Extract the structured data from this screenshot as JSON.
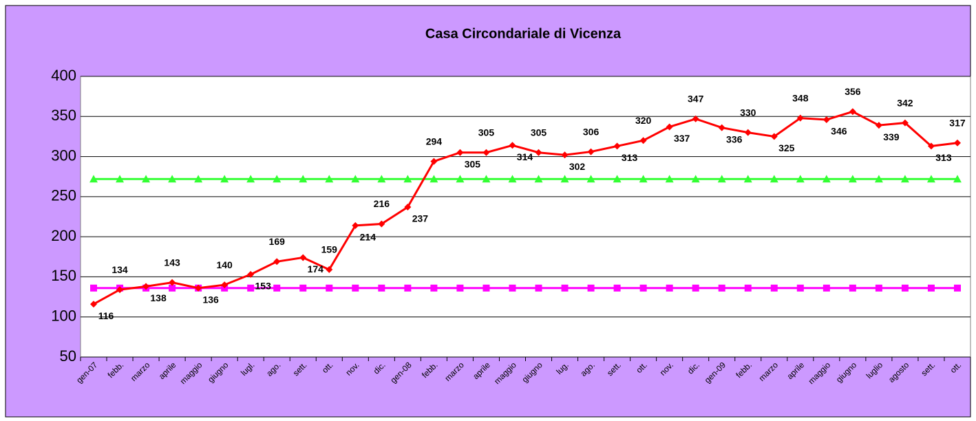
{
  "chart_data": {
    "type": "line",
    "title": "Casa Circondariale di Vicenza",
    "categories": [
      "gen-07",
      "febb.",
      "marzo",
      "aprile",
      "maggio",
      "giugno",
      "lugl.",
      "ago.",
      "sett.",
      "ott.",
      "nov.",
      "dic.",
      "gen-08",
      "febb.",
      "marzo",
      "aprile",
      "maggio",
      "giugno",
      "lug.",
      "ago.",
      "sett.",
      "ott.",
      "nov.",
      "dic.",
      "gen-09",
      "febb.",
      "marzo",
      "aprile",
      "maggio",
      "giugno",
      "luglio",
      "agosto",
      "sett.",
      "ott."
    ],
    "series": [
      {
        "color": "#ff0000",
        "marker": "diamond",
        "values": [
          116,
          134,
          138,
          143,
          136,
          140,
          153,
          169,
          174,
          159,
          214,
          216,
          237,
          294,
          305,
          305,
          314,
          305,
          302,
          306,
          313,
          320,
          337,
          347,
          336,
          330,
          325,
          348,
          346,
          356,
          339,
          342,
          313,
          317
        ]
      },
      {
        "color": "#33ff33",
        "marker": "triangle",
        "values": [
          272,
          272,
          272,
          272,
          272,
          272,
          272,
          272,
          272,
          272,
          272,
          272,
          272,
          272,
          272,
          272,
          272,
          272,
          272,
          272,
          272,
          272,
          272,
          272,
          272,
          272,
          272,
          272,
          272,
          272,
          272,
          272,
          272,
          272
        ]
      },
      {
        "color": "#ff00ff",
        "marker": "square",
        "values": [
          136,
          136,
          136,
          136,
          136,
          136,
          136,
          136,
          136,
          136,
          136,
          136,
          136,
          136,
          136,
          136,
          136,
          136,
          136,
          136,
          136,
          136,
          136,
          136,
          136,
          136,
          136,
          136,
          136,
          136,
          136,
          136,
          136,
          136
        ]
      }
    ],
    "ylim": [
      50,
      400
    ],
    "yticks": [
      50,
      100,
      150,
      200,
      250,
      300,
      350,
      400
    ],
    "grid": true
  }
}
